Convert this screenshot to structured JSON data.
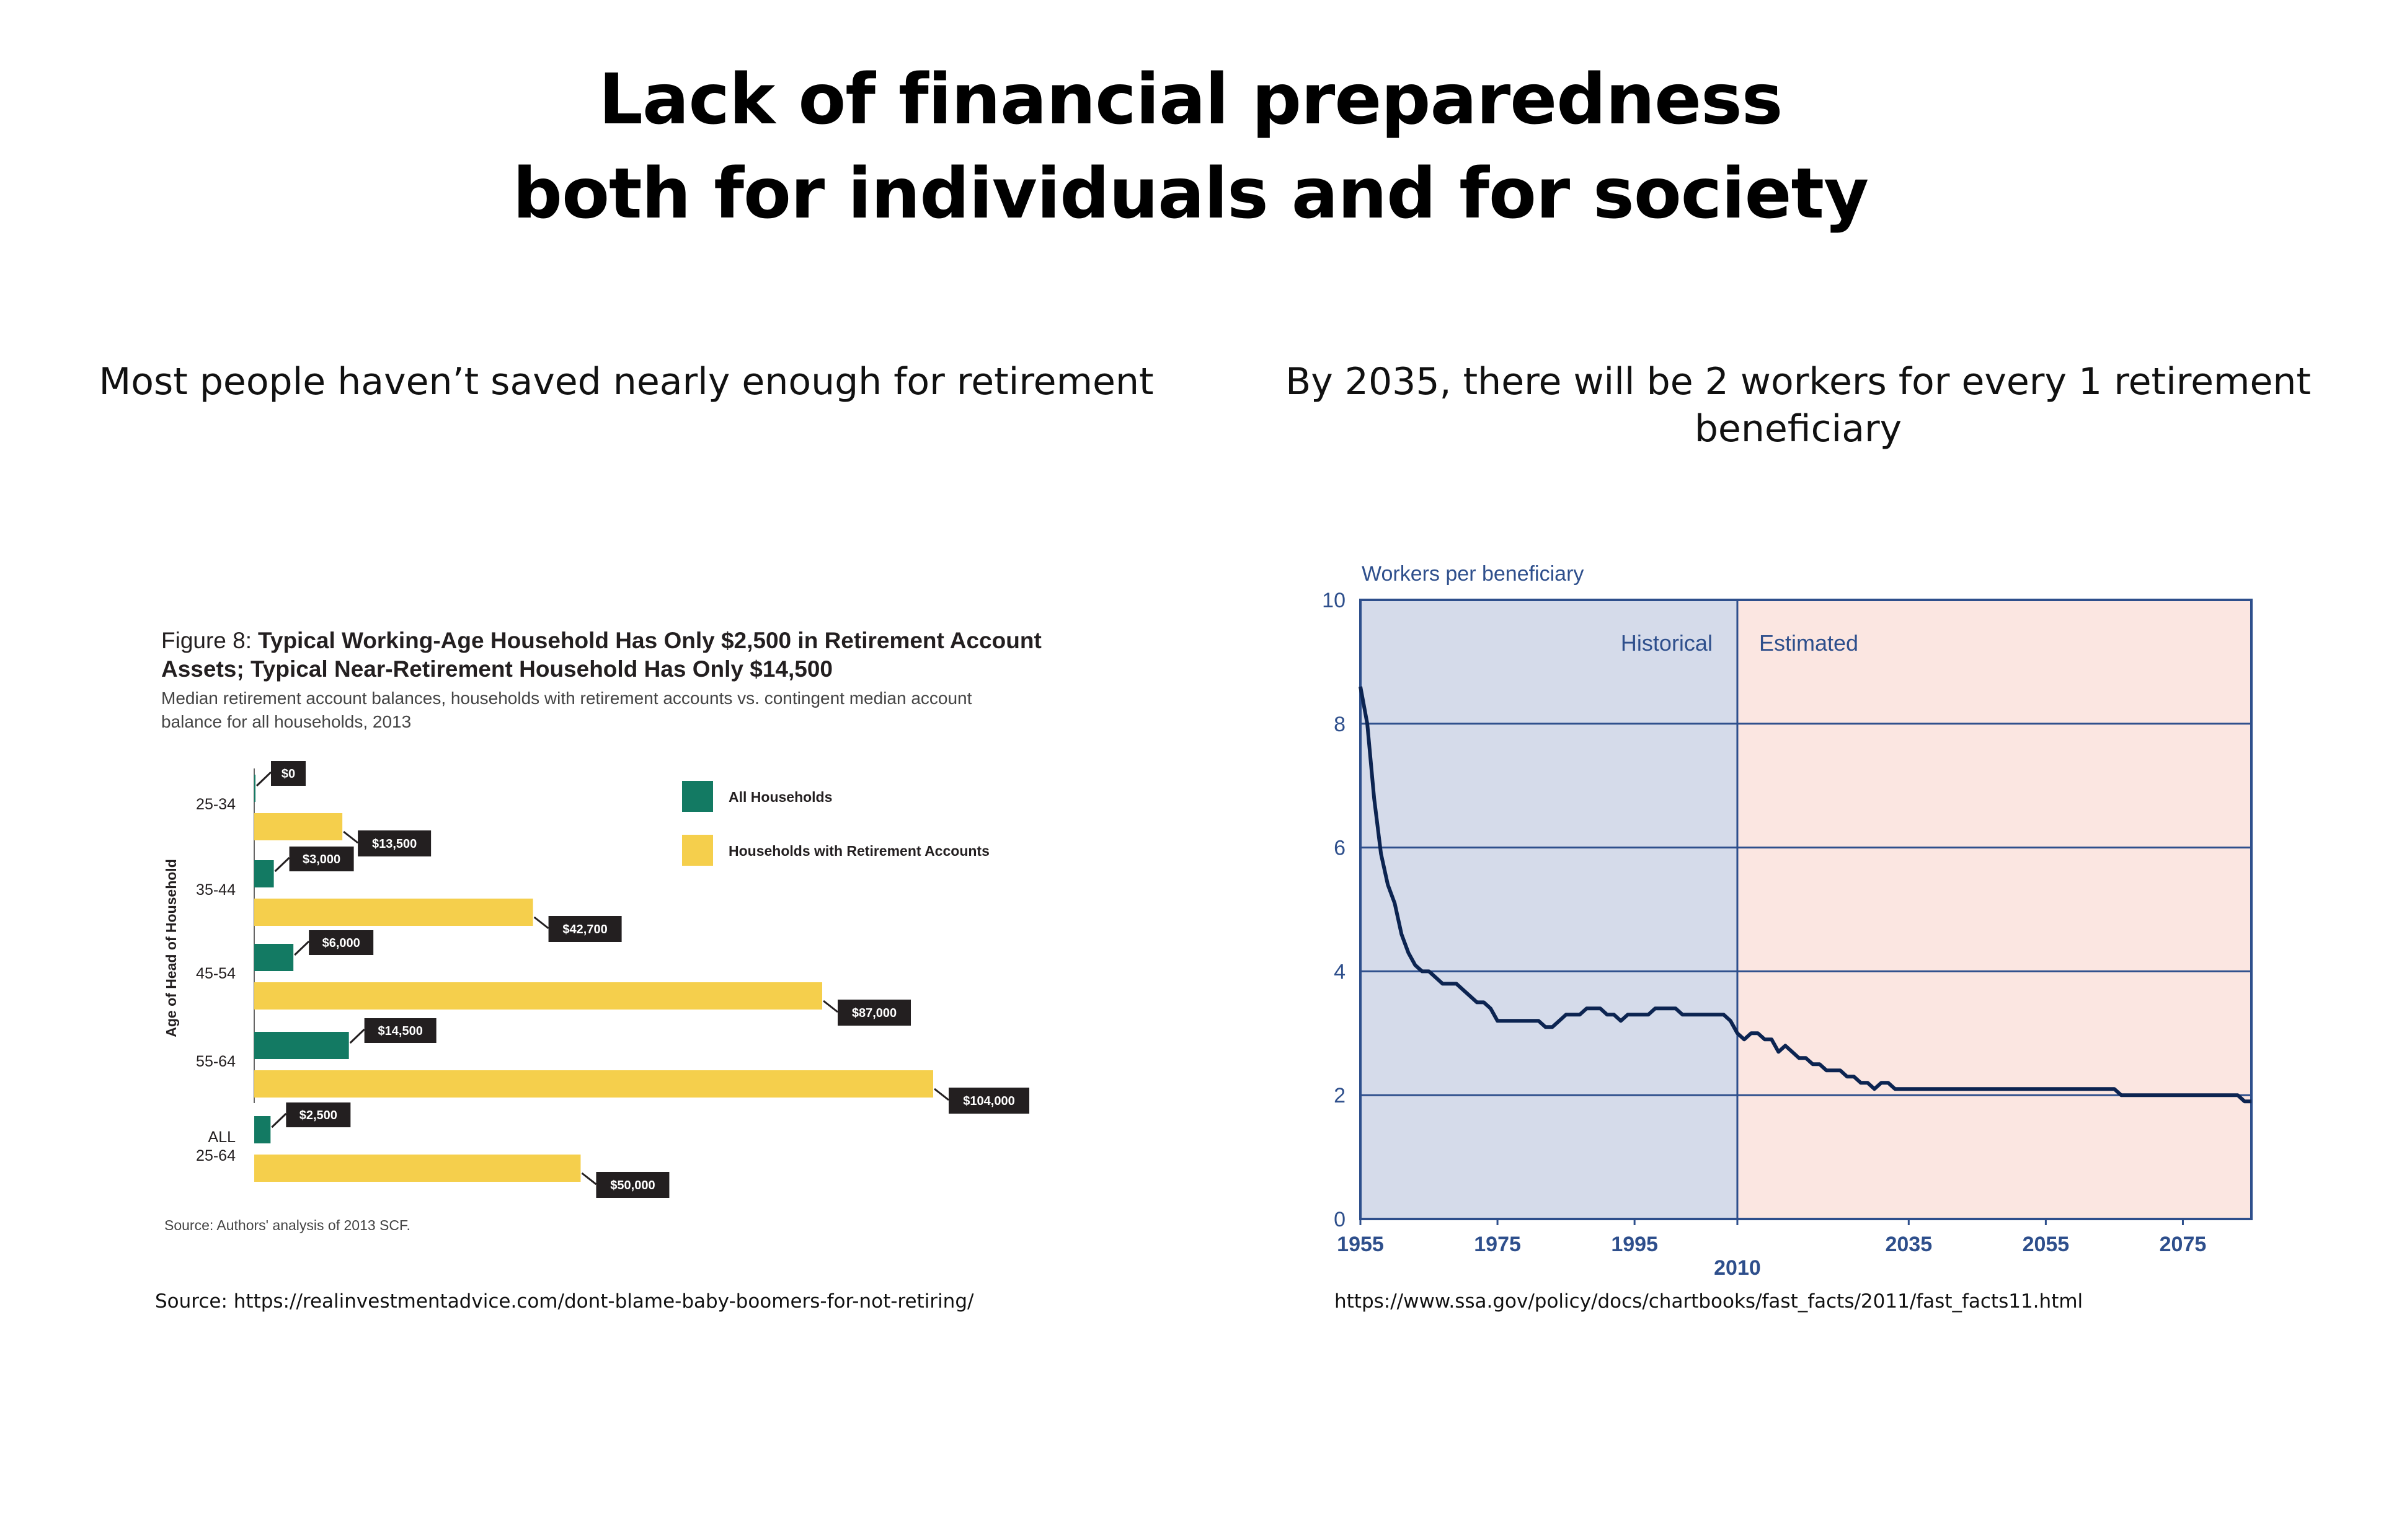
{
  "page": {
    "title_line1": "Lack of financial preparedness",
    "title_line2": "both for individuals and for society",
    "left_subtitle": "Most people haven’t saved nearly enough for retirement",
    "right_subtitle": "By 2035, there will be 2 workers for every 1 retirement beneficiary",
    "left_source": "Source: https://realinvestmentadvice.com/dont-blame-baby-boomers-for-not-retiring/",
    "right_source": "https://www.ssa.gov/policy/docs/chartbooks/fast_facts/2011/fast_facts11.html"
  },
  "chart_data": [
    {
      "type": "bar",
      "orientation": "horizontal",
      "figure_label": "Figure 8:",
      "title_line1": "Typical Working-Age Household Has Only $2,500 in Retirement Account",
      "title_line2": "Assets; Typical Near-Retirement Household Has Only $14,500",
      "subtitle_line1": "Median retirement account balances, households with retirement accounts vs. contingent median account",
      "subtitle_line2": "balance for all households, 2013",
      "ylabel": "Age of Head of Household",
      "categories": [
        "25-34",
        "35-44",
        "45-54",
        "55-64",
        "ALL 25-64"
      ],
      "category_lines": [
        [
          "25-34"
        ],
        [
          "35-44"
        ],
        [
          "45-54"
        ],
        [
          "55-64"
        ],
        [
          "ALL",
          "25-64"
        ]
      ],
      "series": [
        {
          "name": "All Households",
          "color": "#137a63",
          "values": [
            0,
            3000,
            6000,
            14500,
            2500
          ],
          "labels": [
            "$0",
            "$3,000",
            "$6,000",
            "$14,500",
            "$2,500"
          ]
        },
        {
          "name": "Households with Retirement Accounts",
          "color": "#f5cf4c",
          "values": [
            13500,
            42700,
            87000,
            104000,
            50000
          ],
          "labels": [
            "$13,500",
            "$42,700",
            "$87,000",
            "$104,000",
            "$50,000"
          ]
        }
      ],
      "label_box_color": "#231f20",
      "source_note": "Source: Authors' analysis of 2013 SCF.",
      "legend_position": "right"
    },
    {
      "type": "line",
      "ylabel": "Workers per beneficiary",
      "ylim": [
        0,
        10
      ],
      "yticks": [
        "0",
        "2",
        "4",
        "6",
        "8",
        "10"
      ],
      "xlim": [
        1955,
        2085
      ],
      "xticks_top": [
        "1955",
        "1975",
        "1995",
        "2035",
        "2055",
        "2075"
      ],
      "xticks_bottom": [
        "2010"
      ],
      "regions": [
        {
          "name": "Historical",
          "from": 1955,
          "to": 2010,
          "color": "#d5dbea"
        },
        {
          "name": "Estimated",
          "from": 2010,
          "to": 2085,
          "color": "#fbe6e1"
        }
      ],
      "line_color": "#0c2451",
      "frame_color": "#2e4f8c",
      "grid": true,
      "series": [
        {
          "x": [
            1955,
            1956,
            1957,
            1958,
            1959,
            1960,
            1961,
            1962,
            1963,
            1964,
            1965,
            1966,
            1967,
            1968,
            1969,
            1970,
            1971,
            1972,
            1973,
            1974,
            1975,
            1976,
            1977,
            1978,
            1979,
            1980,
            1981,
            1982,
            1983,
            1984,
            1985,
            1986,
            1987,
            1988,
            1989,
            1990,
            1991,
            1992,
            1993,
            1994,
            1995,
            1996,
            1997,
            1998,
            1999,
            2000,
            2001,
            2002,
            2003,
            2004,
            2005,
            2006,
            2007,
            2008,
            2009,
            2010,
            2011,
            2012,
            2013,
            2014,
            2015,
            2016,
            2017,
            2018,
            2019,
            2020,
            2021,
            2022,
            2023,
            2024,
            2025,
            2026,
            2027,
            2028,
            2029,
            2030,
            2031,
            2032,
            2033,
            2034,
            2035,
            2040,
            2045,
            2050,
            2055,
            2060,
            2065,
            2066,
            2070,
            2075,
            2080,
            2083,
            2084,
            2085
          ],
          "y": [
            8.6,
            8.0,
            6.8,
            5.9,
            5.4,
            5.1,
            4.6,
            4.3,
            4.1,
            4.0,
            4.0,
            3.9,
            3.8,
            3.8,
            3.8,
            3.7,
            3.6,
            3.5,
            3.5,
            3.4,
            3.2,
            3.2,
            3.2,
            3.2,
            3.2,
            3.2,
            3.2,
            3.1,
            3.1,
            3.2,
            3.3,
            3.3,
            3.3,
            3.4,
            3.4,
            3.4,
            3.3,
            3.3,
            3.2,
            3.3,
            3.3,
            3.3,
            3.3,
            3.4,
            3.4,
            3.4,
            3.4,
            3.3,
            3.3,
            3.3,
            3.3,
            3.3,
            3.3,
            3.3,
            3.2,
            3.0,
            2.9,
            3.0,
            3.0,
            2.9,
            2.9,
            2.7,
            2.8,
            2.7,
            2.6,
            2.6,
            2.5,
            2.5,
            2.4,
            2.4,
            2.4,
            2.3,
            2.3,
            2.2,
            2.2,
            2.1,
            2.2,
            2.2,
            2.1,
            2.1,
            2.1,
            2.1,
            2.1,
            2.1,
            2.1,
            2.1,
            2.1,
            2.0,
            2.0,
            2.0,
            2.0,
            2.0,
            1.9,
            1.9
          ]
        }
      ]
    }
  ]
}
